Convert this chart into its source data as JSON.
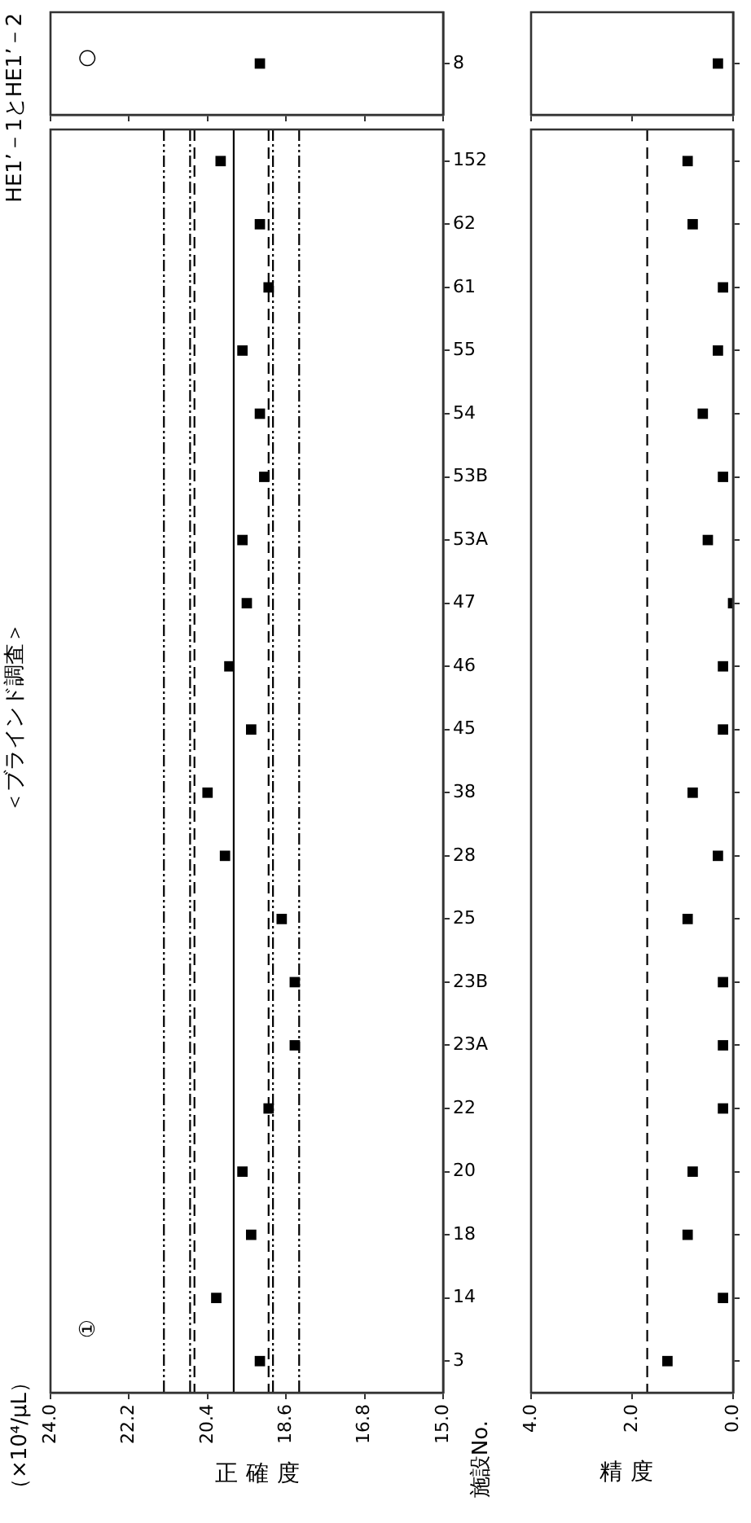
{
  "chart_data": [
    {
      "type": "scatter",
      "orientation": "horizontal",
      "title": "＜ブラインド調査＞",
      "xlabel": "正確度",
      "ylabel": "施設No.",
      "marker": "square",
      "color": "#000000",
      "categories": [
        "152",
        "62",
        "61",
        "55",
        "54",
        "53B",
        "53A",
        "47",
        "46",
        "45",
        "38",
        "28",
        "25",
        "23B",
        "23A",
        "22",
        "20",
        "18",
        "14",
        "3"
      ],
      "values": [
        20.1,
        19.2,
        19.0,
        19.6,
        19.2,
        19.1,
        19.6,
        19.5,
        19.9,
        19.4,
        20.4,
        20.0,
        18.7,
        18.4,
        18.4,
        19.0,
        19.6,
        19.4,
        20.2,
        19.2
      ],
      "xlim": [
        24,
        15
      ],
      "xticks": [
        {
          "value": 24,
          "label": "24.0"
        },
        {
          "value": 22.2,
          "label": "22.2"
        },
        {
          "value": 20.4,
          "label": "20.4"
        },
        {
          "value": 18.6,
          "label": "18.6"
        },
        {
          "value": 16.8,
          "label": "16.8"
        },
        {
          "value": 15,
          "label": "15.0"
        }
      ],
      "ref_lines": [
        {
          "axis": "x",
          "value": 21.4,
          "line_style": "dotted"
        },
        {
          "axis": "x",
          "value": 20.8,
          "line_style": "dotted"
        },
        {
          "axis": "x",
          "value": 20.7,
          "line_style": "dashed"
        },
        {
          "axis": "x",
          "value": 19.8,
          "line_style": "solid"
        },
        {
          "axis": "x",
          "value": 19.0,
          "line_style": "dashed"
        },
        {
          "axis": "x",
          "value": 18.9,
          "line_style": "dotted"
        },
        {
          "axis": "x",
          "value": 18.3,
          "line_style": "dotted"
        }
      ],
      "annotations": [
        "（×10⁴/μL）",
        "①"
      ]
    },
    {
      "type": "scatter",
      "orientation": "horizontal",
      "title": "HE1’－1とHE1’－2",
      "marker": "square",
      "color": "#000000",
      "tick_labels": "y",
      "categories": [
        "8"
      ],
      "values": [
        19.2
      ],
      "xlim": [
        24,
        15
      ],
      "xticks": [
        {
          "value": 24,
          "label": null
        },
        {
          "value": 22.2,
          "label": null
        },
        {
          "value": 20.4,
          "label": null
        },
        {
          "value": 18.6,
          "label": null
        },
        {
          "value": 16.8,
          "label": null
        },
        {
          "value": 15,
          "label": null
        }
      ],
      "annotations": [
        "○"
      ]
    },
    {
      "type": "scatter",
      "orientation": "horizontal",
      "xlabel": "精度",
      "marker": "square",
      "color": "#000000",
      "tick_labels": "x",
      "categories": [
        null,
        null,
        null,
        null,
        null,
        null,
        null,
        null,
        null,
        null,
        null,
        null,
        null,
        null,
        null,
        null,
        null,
        null,
        null,
        null
      ],
      "values": [
        0.9,
        0.8,
        0.2,
        0.3,
        0.6,
        0.2,
        0.5,
        0.0,
        0.2,
        0.2,
        0.8,
        0.3,
        0.9,
        0.2,
        0.2,
        0.2,
        0.8,
        0.9,
        0.2,
        1.3
      ],
      "xlim": [
        4,
        0
      ],
      "xticks": [
        {
          "value": 4,
          "label": "4.0"
        },
        {
          "value": 2,
          "label": "2.0"
        },
        {
          "value": 0,
          "label": "0.0"
        }
      ],
      "ref_lines": [
        {
          "axis": "x",
          "value": 1.7,
          "line_style": "dashed"
        }
      ]
    },
    {
      "type": "scatter",
      "orientation": "horizontal",
      "marker": "square",
      "color": "#000000",
      "tick_labels": false,
      "categories": [
        null
      ],
      "values": [
        0.3
      ],
      "xlim": [
        4,
        0
      ],
      "xticks": [
        {
          "value": 4,
          "label": null
        },
        {
          "value": 2,
          "label": null
        },
        {
          "value": 0,
          "label": null
        }
      ]
    }
  ]
}
